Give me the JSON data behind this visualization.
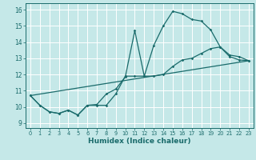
{
  "xlabel": "Humidex (Indice chaleur)",
  "xlim": [
    -0.5,
    23.5
  ],
  "ylim": [
    8.7,
    16.4
  ],
  "xticks": [
    0,
    1,
    2,
    3,
    4,
    5,
    6,
    7,
    8,
    9,
    10,
    11,
    12,
    13,
    14,
    15,
    16,
    17,
    18,
    19,
    20,
    21,
    22,
    23
  ],
  "yticks": [
    9,
    10,
    11,
    12,
    13,
    14,
    15,
    16
  ],
  "bg_color": "#c5e8e8",
  "grid_color": "#ffffff",
  "line_color": "#1a6b6b",
  "line1_x": [
    0,
    1,
    2,
    3,
    4,
    5,
    6,
    7,
    8,
    9,
    10,
    11,
    12,
    13,
    14,
    15,
    16,
    17,
    18,
    19,
    20,
    21,
    22,
    23
  ],
  "line1_y": [
    10.7,
    10.1,
    9.7,
    9.6,
    9.8,
    9.5,
    10.1,
    10.15,
    10.8,
    11.1,
    11.85,
    14.7,
    11.9,
    13.8,
    15.0,
    15.9,
    15.75,
    15.4,
    15.3,
    14.75,
    13.7,
    13.2,
    13.1,
    12.85
  ],
  "line2_x": [
    0,
    1,
    2,
    3,
    4,
    5,
    6,
    7,
    8,
    9,
    10,
    11,
    12,
    13,
    14,
    15,
    16,
    17,
    18,
    19,
    20,
    21,
    22,
    23
  ],
  "line2_y": [
    10.7,
    10.1,
    9.7,
    9.6,
    9.8,
    9.5,
    10.1,
    10.1,
    10.1,
    10.8,
    11.9,
    11.9,
    11.9,
    11.9,
    12.0,
    12.5,
    12.9,
    13.0,
    13.3,
    13.6,
    13.7,
    13.1,
    12.9,
    12.85
  ],
  "line3_x": [
    0,
    23
  ],
  "line3_y": [
    10.7,
    12.85
  ]
}
